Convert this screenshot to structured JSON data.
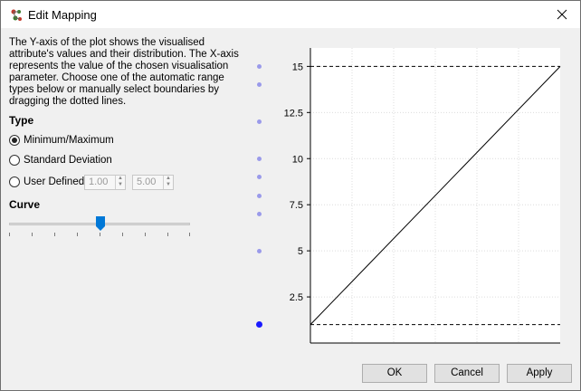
{
  "window": {
    "title": "Edit Mapping",
    "icons": {
      "app": "app-logo-icon",
      "close": "close-icon"
    }
  },
  "description": "The Y-axis of the plot shows the visualised attribute's values and their distribution. The X-axis represents the value of the chosen visualisation parameter. Choose one of the automatic range types below or manually select boundaries by dragging the dotted lines.",
  "type_section": {
    "label": "Type",
    "options": [
      {
        "label": "Minimum/Maximum",
        "checked": true
      },
      {
        "label": "Standard Deviation",
        "checked": false
      },
      {
        "label": "User Defined",
        "checked": false
      }
    ],
    "user_min": "1.00",
    "user_max": "5.00"
  },
  "curve_section": {
    "label": "Curve",
    "slider_value": 0.5
  },
  "distribution": {
    "values": [
      15,
      14,
      12,
      10,
      9,
      8,
      7,
      5,
      1
    ],
    "highlight": 8
  },
  "chart_data": {
    "type": "line",
    "x": [
      0,
      1
    ],
    "y": [
      1,
      15
    ],
    "ylim": [
      0,
      16
    ],
    "yticks": [
      "15",
      "12.5",
      "10",
      "7.5",
      "5",
      "2.5"
    ],
    "ytick_values": [
      15,
      12.5,
      10,
      7.5,
      5,
      2.5
    ],
    "boundaries": [
      15,
      1
    ],
    "grid": true
  },
  "buttons": {
    "ok": "OK",
    "cancel": "Cancel",
    "apply": "Apply"
  }
}
